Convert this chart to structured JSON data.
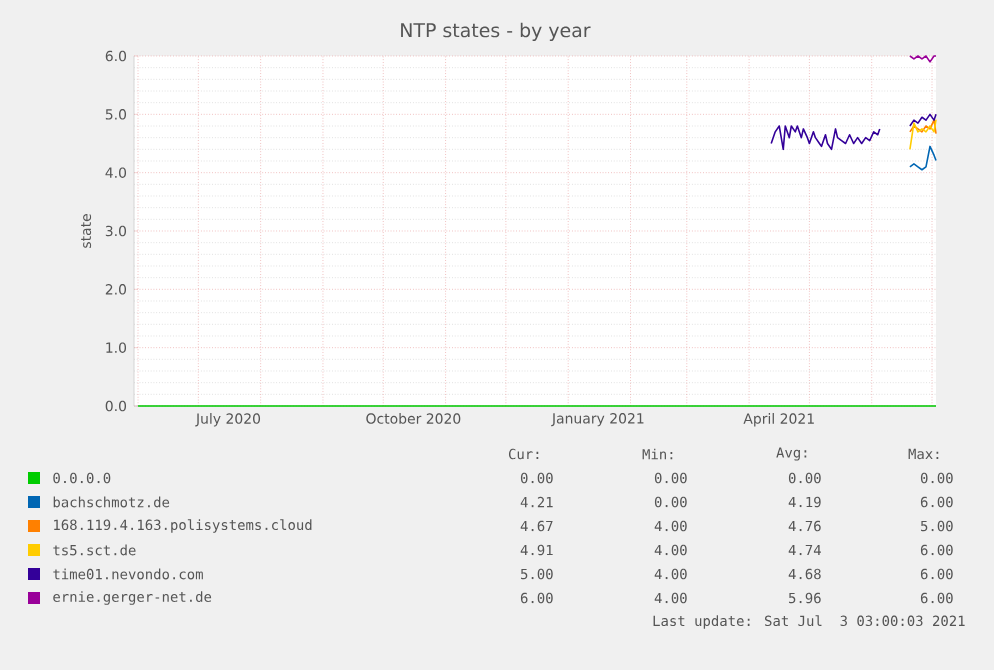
{
  "chart_data": {
    "type": "line",
    "title": "NTP states - by year",
    "ylabel": "state",
    "xlim": [
      "2020-05-30",
      "2021-07-03"
    ],
    "xticks": [
      {
        "value": "2020-06-01",
        "label": null
      },
      {
        "value": "2020-07-01",
        "label": null
      },
      {
        "value": "2020-08-01",
        "label": null
      },
      {
        "value": "2020-09-01",
        "label": null
      },
      {
        "value": "2020-10-01",
        "label": null
      },
      {
        "value": "2020-11-01",
        "label": null
      },
      {
        "value": "2020-12-01",
        "label": null
      },
      {
        "value": "2021-01-01",
        "label": null
      },
      {
        "value": "2021-02-01",
        "label": null
      },
      {
        "value": "2021-03-01",
        "label": null
      },
      {
        "value": "2021-04-01",
        "label": null
      },
      {
        "value": "2021-05-01",
        "label": null
      },
      {
        "value": "2021-06-01",
        "label": null
      },
      {
        "value": "2021-07-01",
        "label": null
      },
      {
        "value": "2020-07-16",
        "label": "July 2020"
      },
      {
        "value": "2020-10-16",
        "label": "October 2020"
      },
      {
        "value": "2021-01-16",
        "label": "January 2021"
      },
      {
        "value": "2021-04-16",
        "label": "April 2021"
      }
    ],
    "ylim": [
      0,
      6
    ],
    "yticks": [
      {
        "value": 0,
        "label": "0.0"
      },
      {
        "value": 1,
        "label": "1.0"
      },
      {
        "value": 2,
        "label": "2.0"
      },
      {
        "value": 3,
        "label": "3.0"
      },
      {
        "value": 4,
        "label": "4.0"
      },
      {
        "value": 5,
        "label": "5.0"
      },
      {
        "value": 6,
        "label": "6.0"
      }
    ],
    "grid": true,
    "legend": "bottom",
    "series": [
      {
        "name": "0.0.0.0",
        "color": "#00cc00",
        "x": [
          "2020-06-01",
          "2021-07-03"
        ],
        "values": [
          0,
          0
        ]
      },
      {
        "name": "bachschmotz.de",
        "color": "#0066b3",
        "x": [
          "2021-06-20",
          "2021-06-22",
          "2021-06-24",
          "2021-06-26",
          "2021-06-28",
          "2021-06-30",
          "2021-07-02",
          "2021-07-03"
        ],
        "values": [
          4.1,
          4.15,
          4.1,
          4.05,
          4.1,
          4.45,
          4.3,
          4.21
        ]
      },
      {
        "name": "168.119.4.163.polisystems.cloud",
        "color": "#ff8000",
        "x": [
          "2021-06-20",
          "2021-06-22",
          "2021-06-24",
          "2021-06-26",
          "2021-06-28",
          "2021-06-30",
          "2021-07-02",
          "2021-07-03"
        ],
        "values": [
          4.7,
          4.8,
          4.75,
          4.7,
          4.8,
          4.75,
          4.9,
          4.67
        ]
      },
      {
        "name": "ts5.sct.de",
        "color": "#ffcc00",
        "x": [
          "2021-06-20",
          "2021-06-22",
          "2021-06-24",
          "2021-06-26",
          "2021-06-28",
          "2021-06-30",
          "2021-07-02",
          "2021-07-03"
        ],
        "values": [
          4.4,
          4.85,
          4.7,
          4.75,
          4.7,
          4.8,
          4.7,
          4.91
        ]
      },
      {
        "name": "time01.nevondo.com",
        "color": "#330099",
        "x": [
          "2021-04-12",
          "2021-04-14",
          "2021-04-16",
          "2021-04-17",
          "2021-04-18",
          "2021-04-19",
          "2021-04-21",
          "2021-04-22",
          "2021-04-24",
          "2021-04-25",
          "2021-04-27",
          "2021-04-28",
          "2021-04-30",
          "2021-05-01",
          "2021-05-03",
          "2021-05-04",
          "2021-05-06",
          "2021-05-07",
          "2021-05-09",
          "2021-05-10",
          "2021-05-12",
          "2021-05-14",
          "2021-05-15",
          "2021-05-17",
          "2021-05-19",
          "2021-05-21",
          "2021-05-23",
          "2021-05-25",
          "2021-05-27",
          "2021-05-29",
          "2021-05-31",
          "2021-06-02",
          "2021-06-04",
          "2021-06-05",
          "2021-06-12",
          "2021-06-20",
          "2021-06-22",
          "2021-06-24",
          "2021-06-26",
          "2021-06-28",
          "2021-06-30",
          "2021-07-02",
          "2021-07-03"
        ],
        "values": [
          4.5,
          4.7,
          4.8,
          4.6,
          4.4,
          4.8,
          4.6,
          4.8,
          4.7,
          4.8,
          4.6,
          4.75,
          4.6,
          4.5,
          4.7,
          4.6,
          4.5,
          4.45,
          4.65,
          4.5,
          4.4,
          4.75,
          4.6,
          4.55,
          4.5,
          4.65,
          4.5,
          4.6,
          4.5,
          4.6,
          4.55,
          4.7,
          4.65,
          4.75,
          null,
          4.8,
          4.9,
          4.85,
          4.95,
          4.9,
          5.0,
          4.9,
          5.0
        ]
      },
      {
        "name": "ernie.gerger-net.de",
        "color": "#990099",
        "x": [
          "2021-06-20",
          "2021-06-22",
          "2021-06-24",
          "2021-06-26",
          "2021-06-28",
          "2021-06-30",
          "2021-07-02",
          "2021-07-03"
        ],
        "values": [
          6.0,
          5.95,
          6.0,
          5.95,
          6.0,
          5.9,
          6.0,
          6.0
        ]
      }
    ],
    "annotations": [
      "Cur:",
      "Min:",
      "Avg:",
      "Max:",
      "0.00",
      "0.00",
      "0.00",
      "0.00",
      "4.21",
      "0.00",
      "4.19",
      "6.00",
      "4.67",
      "4.00",
      "4.76",
      "5.00",
      "4.91",
      "4.00",
      "4.74",
      "6.00",
      "5.00",
      "4.00",
      "4.68",
      "6.00",
      "6.00",
      "4.00",
      "5.96",
      "6.00",
      "Last update: Sat Jul  3 03:00:03 2021"
    ]
  }
}
